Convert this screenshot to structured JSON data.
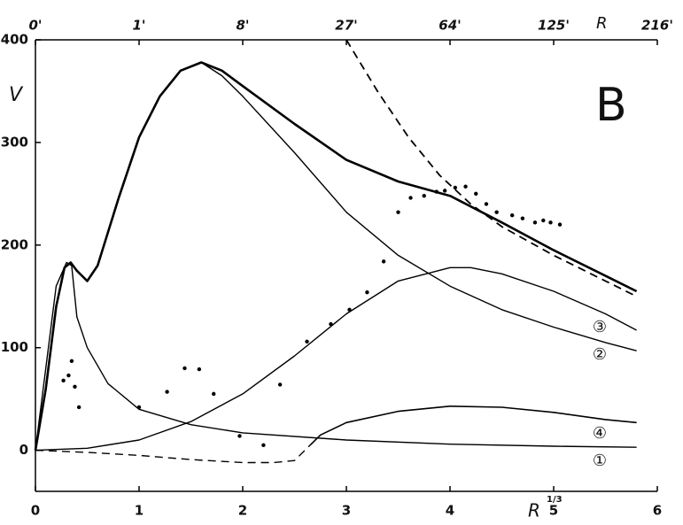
{
  "chart_data": {
    "type": "line",
    "big_label": "B",
    "ylabel": "V",
    "xlabel": "R",
    "xlabel_sup": "1/3",
    "x2label": "R",
    "xlim": [
      0,
      6
    ],
    "ylim": [
      -40,
      400
    ],
    "xticks": [
      0,
      1,
      2,
      3,
      4,
      5,
      6
    ],
    "yticks": [
      0,
      100,
      200,
      300,
      400
    ],
    "x2ticks": [
      {
        "value": 0,
        "label": "0'"
      },
      {
        "value": 1,
        "label": "1'"
      },
      {
        "value": 2,
        "label": "8'"
      },
      {
        "value": 3,
        "label": "27'"
      },
      {
        "value": 4,
        "label": "64'"
      },
      {
        "value": 5,
        "label": "125'"
      },
      {
        "value": 6,
        "label": "216'"
      }
    ],
    "annotations": [
      "③",
      "②",
      "④",
      "①"
    ],
    "series": [
      {
        "color": "#000",
        "width": 2.6,
        "dash": false,
        "x": [
          0,
          0.1,
          0.2,
          0.28,
          0.34,
          0.4,
          0.5,
          0.6,
          0.8,
          1.0,
          1.2,
          1.4,
          1.6,
          1.8,
          2.0,
          2.5,
          3.0,
          3.5,
          4.0,
          4.5,
          5.0,
          5.5,
          5.8
        ],
        "values": [
          0,
          60,
          140,
          178,
          183,
          175,
          165,
          180,
          245,
          305,
          345,
          370,
          378,
          370,
          355,
          318,
          283,
          262,
          248,
          222,
          195,
          170,
          155
        ]
      },
      {
        "color": "#000",
        "width": 1.4,
        "dash": false,
        "x": [
          0,
          0.1,
          0.2,
          0.28,
          0.34,
          0.4,
          0.5,
          0.6,
          0.8,
          1.0,
          1.2,
          1.4,
          1.6,
          1.8,
          2.0,
          2.5,
          3.0,
          3.5,
          4.0,
          4.5,
          5.0,
          5.5,
          5.8
        ],
        "values": [
          0,
          60,
          140,
          178,
          183,
          175,
          165,
          180,
          245,
          305,
          345,
          370,
          378,
          365,
          345,
          290,
          232,
          190,
          160,
          137,
          120,
          105,
          97
        ]
      },
      {
        "color": "#000",
        "width": 1.4,
        "dash": false,
        "x": [
          0,
          0.5,
          1,
          1.5,
          2,
          2.5,
          3,
          3.5,
          4,
          4.2,
          4.5,
          5,
          5.5,
          5.8
        ],
        "values": [
          0,
          2,
          10,
          28,
          55,
          92,
          133,
          165,
          178,
          178,
          172,
          155,
          133,
          117
        ]
      },
      {
        "color": "#000",
        "width": 1.4,
        "dash": false,
        "x": [
          0,
          0.1,
          0.2,
          0.3,
          0.35,
          0.4,
          0.5,
          0.7,
          1,
          1.5,
          2,
          3,
          4,
          5,
          5.8
        ],
        "values": [
          0,
          80,
          160,
          183,
          180,
          130,
          100,
          65,
          40,
          25,
          17,
          10,
          6,
          4,
          3
        ]
      },
      {
        "color": "#000",
        "width": 1.6,
        "dash": false,
        "x": [
          2.65,
          2.75,
          3,
          3.5,
          4,
          4.5,
          5,
          5.5,
          5.8
        ],
        "values": [
          5,
          15,
          27,
          38,
          43,
          42,
          37,
          30,
          27
        ]
      },
      {
        "color": "#000",
        "width": 1.4,
        "dash": true,
        "x": [
          0,
          0.5,
          1,
          1.5,
          2,
          2.3,
          2.5,
          2.65
        ],
        "values": [
          0,
          -2,
          -5,
          -9,
          -12,
          -12,
          -10,
          5
        ]
      },
      {
        "color": "#000",
        "width": 1.8,
        "dash": true,
        "x": [
          3.0,
          3.3,
          3.6,
          3.9,
          4.2,
          4.5,
          5,
          5.5,
          5.8
        ],
        "values": [
          400,
          350,
          305,
          268,
          240,
          218,
          190,
          165,
          150
        ]
      },
      {
        "color": "#000",
        "points": true,
        "x": [
          0.27,
          0.32,
          0.35,
          0.38,
          0.42,
          1.0,
          1.27,
          1.44,
          1.58,
          1.72,
          1.97,
          2.2,
          2.36,
          2.62,
          2.85,
          3.03,
          3.2,
          3.36,
          3.5,
          3.62,
          3.75,
          3.87,
          3.95,
          4.05,
          4.15,
          4.25,
          4.35,
          4.45,
          4.6,
          4.7,
          4.82,
          4.9,
          4.97,
          5.06
        ],
        "values": [
          68,
          73,
          87,
          62,
          42,
          42,
          57,
          80,
          79,
          55,
          14,
          5,
          64,
          106,
          123,
          137,
          154,
          184,
          232,
          246,
          248,
          252,
          253,
          256,
          257,
          250,
          240,
          232,
          229,
          226,
          222,
          224,
          222,
          220
        ]
      }
    ]
  }
}
